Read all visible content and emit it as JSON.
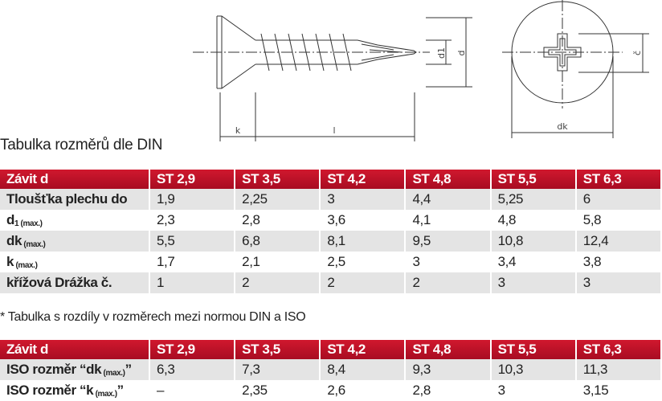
{
  "drawing": {
    "labels": {
      "k": "k",
      "l": "l",
      "d1": "d1",
      "d": "d",
      "dk": "dk",
      "c": "č"
    }
  },
  "caption": "Tabulka rozměrů dle DIN",
  "table1": {
    "header": [
      "Závit d",
      "ST 2,9",
      "ST 3,5",
      "ST 4,2",
      "ST 4,8",
      "ST 5,5",
      "ST 6,3"
    ],
    "rows": [
      [
        {
          "main": "Tloušťka plechu do"
        },
        "1,9",
        "2,25",
        "3",
        "4,4",
        "5,25",
        "6"
      ],
      [
        {
          "main": "d",
          "sub": "1 (max.)"
        },
        "2,3",
        "2,8",
        "3,6",
        "4,1",
        "4,8",
        "5,8"
      ],
      [
        {
          "main": "dk",
          "sub": " (max.)"
        },
        "5,5",
        "6,8",
        "8,1",
        "9,5",
        "10,8",
        "12,4"
      ],
      [
        {
          "main": "k",
          "sub": " (max.)"
        },
        "1,7",
        "2,1",
        "2,5",
        "3",
        "3,4",
        "3,8"
      ],
      [
        {
          "main": "křížová Drážka č."
        },
        "1",
        "2",
        "2",
        "2",
        "3",
        "3"
      ]
    ]
  },
  "note": "* Tabulka s rozdíly v rozměrech mezi normou DIN a ISO",
  "table2": {
    "header": [
      "Závit d",
      "ST 2,9",
      "ST 3,5",
      "ST 4,2",
      "ST 4,8",
      "ST 5,5",
      "ST 6,3"
    ],
    "rows": [
      [
        {
          "main": "ISO rozměr “dk",
          "sub": " (max.)",
          "tail": "”"
        },
        "6,3",
        "7,3",
        "8,4",
        "9,3",
        "10,3",
        "11,3"
      ],
      [
        {
          "main": "ISO rozměr “k",
          "sub": " (max.)",
          "tail": "”"
        },
        "–",
        "2,35",
        "2,6",
        "2,8",
        "3",
        "3,15"
      ]
    ]
  }
}
